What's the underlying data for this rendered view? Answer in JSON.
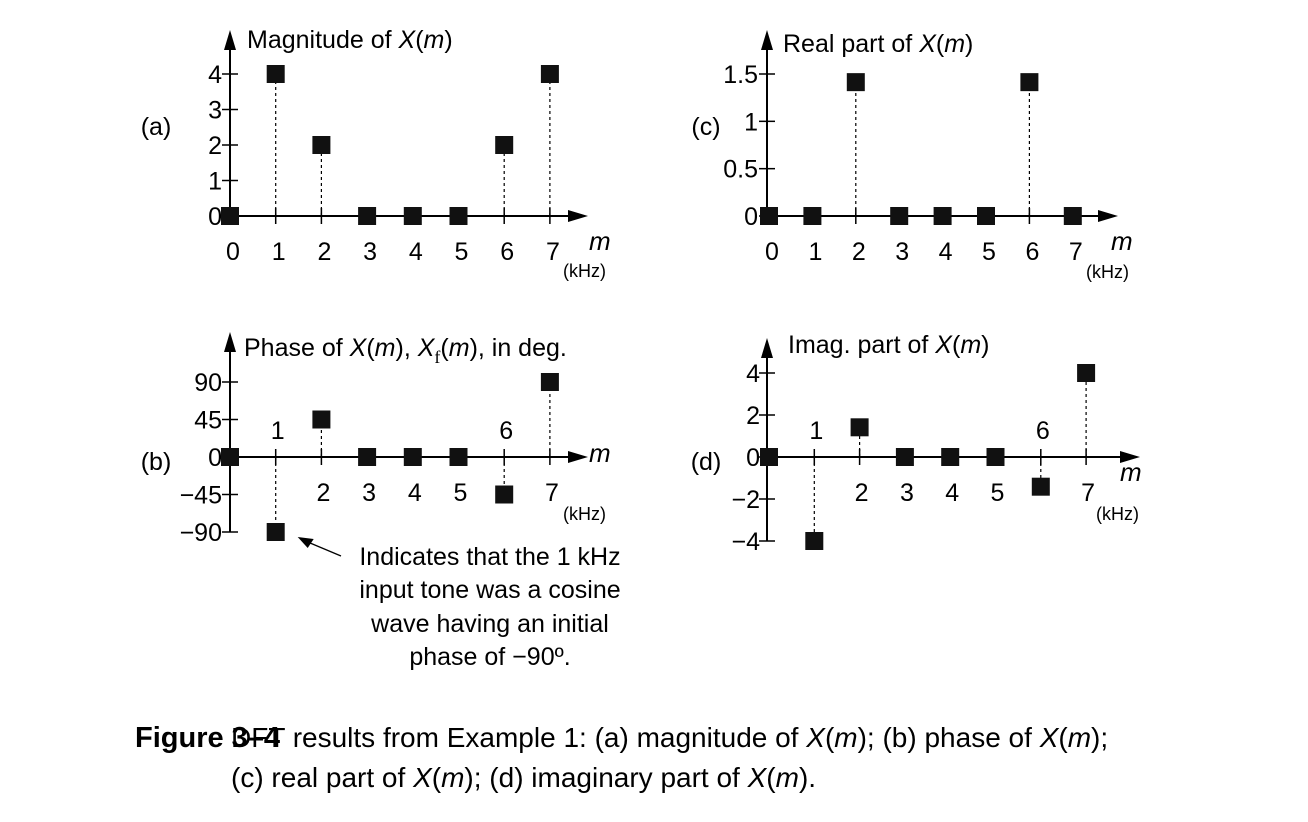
{
  "chart_data": [
    {
      "id": "a",
      "type": "scatter",
      "panel_label": "(a)",
      "title": "Magnitude of X(m)",
      "xlabel": "m",
      "xunit": "(kHz)",
      "x": [
        0,
        1,
        2,
        3,
        4,
        5,
        6,
        7
      ],
      "values": [
        0,
        4,
        2,
        0,
        0,
        0,
        2,
        4
      ],
      "ylim": [
        0,
        4
      ],
      "yticks": [
        "0",
        "1",
        "2",
        "3",
        "4"
      ],
      "ytick_values": [
        0,
        1,
        2,
        3,
        4
      ],
      "xtick_labels": [
        "0",
        "1",
        "2",
        "3",
        "4",
        "5",
        "6",
        "7"
      ],
      "stems": true,
      "grid": false
    },
    {
      "id": "b",
      "type": "scatter",
      "panel_label": "(b)",
      "title": "Phase of X(m), X_f(m), in deg.",
      "xlabel": "m",
      "xunit": "(kHz)",
      "x": [
        0,
        1,
        2,
        3,
        4,
        5,
        6,
        7
      ],
      "values": [
        0,
        -90,
        45,
        0,
        0,
        0,
        -45,
        90
      ],
      "ylim": [
        -90,
        90
      ],
      "yticks": [
        "90",
        "45",
        "0",
        "−45",
        "−90"
      ],
      "ytick_values": [
        90,
        45,
        0,
        -45,
        -90
      ],
      "xtick_labels_below": [
        "2",
        "3",
        "4",
        "5",
        "7"
      ],
      "xtick_labels_above": [
        "1",
        "6"
      ],
      "annotation": [
        "Indicates that the 1 kHz",
        "input tone was a cosine",
        "wave having an initial",
        "phase of −90º."
      ],
      "stems": true,
      "grid": false
    },
    {
      "id": "c",
      "type": "scatter",
      "panel_label": "(c)",
      "title": "Real part of X(m)",
      "xlabel": "m",
      "xunit": "(kHz)",
      "x": [
        0,
        1,
        2,
        3,
        4,
        5,
        6,
        7
      ],
      "values": [
        0,
        0,
        1.414,
        0,
        0,
        0,
        1.414,
        0
      ],
      "ylim": [
        0,
        1.5
      ],
      "yticks": [
        "0",
        "0.5",
        "1",
        "1.5"
      ],
      "ytick_values": [
        0,
        0.5,
        1,
        1.5
      ],
      "xtick_labels": [
        "0",
        "1",
        "2",
        "3",
        "4",
        "5",
        "6",
        "7"
      ],
      "stems": true,
      "grid": false
    },
    {
      "id": "d",
      "type": "scatter",
      "panel_label": "(d)",
      "title": "Imag. part of X(m)",
      "xlabel": "m",
      "xunit": "(kHz)",
      "x": [
        0,
        1,
        2,
        3,
        4,
        5,
        6,
        7
      ],
      "values": [
        0,
        -4,
        1.414,
        0,
        0,
        0,
        -1.414,
        4
      ],
      "ylim": [
        -4,
        4
      ],
      "yticks": [
        "4",
        "2",
        "0",
        "−2",
        "−4"
      ],
      "ytick_values": [
        4,
        2,
        0,
        -2,
        -4
      ],
      "xtick_labels_below": [
        "2",
        "3",
        "4",
        "5",
        "7"
      ],
      "xtick_labels_above": [
        "1",
        "6"
      ],
      "stems": true,
      "grid": false
    }
  ],
  "caption": {
    "label": "Figure 3–4",
    "line1": "DFT results from Example 1: (a) magnitude of X(m); (b) phase of X(m);",
    "line2": "(c) real part of X(m); (d) imaginary part of X(m)."
  }
}
